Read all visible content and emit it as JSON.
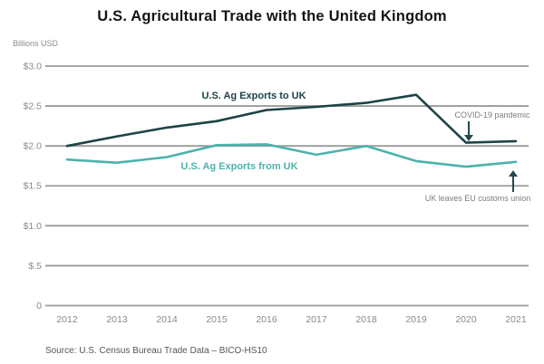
{
  "title": "U.S. Agricultural Trade with the United Kingdom",
  "y_axis": {
    "unit": "Billions USD",
    "ticks": [
      {
        "value": 3.0,
        "label": "$3.0"
      },
      {
        "value": 2.5,
        "label": "$2.5"
      },
      {
        "value": 2.0,
        "label": "$2.0"
      },
      {
        "value": 1.5,
        "label": "$1.5"
      },
      {
        "value": 1.0,
        "label": "$1.0"
      },
      {
        "value": 0.5,
        "label": "$.5"
      },
      {
        "value": 0.0,
        "label": "0"
      }
    ]
  },
  "chart_data": {
    "type": "line",
    "title": "U.S. Agricultural Trade with the United Kingdom",
    "xlabel": "",
    "ylabel": "Billions USD",
    "x": [
      2012,
      2013,
      2014,
      2015,
      2016,
      2017,
      2018,
      2019,
      2020,
      2021
    ],
    "series": [
      {
        "name": "U.S. Ag Exports to UK",
        "color": "#1d4348",
        "values": [
          2.0,
          2.12,
          2.23,
          2.31,
          2.45,
          2.49,
          2.54,
          2.64,
          2.04,
          2.06
        ]
      },
      {
        "name": "U.S. Ag Exports from UK",
        "color": "#4db2ac",
        "values": [
          1.83,
          1.79,
          1.86,
          2.01,
          2.02,
          1.89,
          2.0,
          1.81,
          1.74,
          1.8
        ]
      }
    ],
    "ylim": [
      0,
      3.0
    ],
    "grid": true,
    "legend_position": "inline-labels"
  },
  "annotations": [
    {
      "text": "COVID-19 pandemic",
      "arrow": "down",
      "target_year": 2020,
      "target_series": "U.S. Ag Exports to UK"
    },
    {
      "text": "UK leaves EU customs union",
      "arrow": "up",
      "target_year": 2021,
      "target_series": "U.S. Ag Exports from UK"
    }
  ],
  "source": "Source: U.S. Census Bureau Trade Data – BICO-HS10",
  "colors": {
    "exports_to_uk_line": "#1d4348",
    "exports_from_uk_line": "#4db2ac",
    "gridline": "#9a9a9a",
    "tick_text": "#8a8a8a",
    "annotation_text": "#7d7d7d",
    "arrow": "#24494d",
    "title_text": "#141414",
    "source_text": "#555555",
    "background": "#ffffff"
  }
}
